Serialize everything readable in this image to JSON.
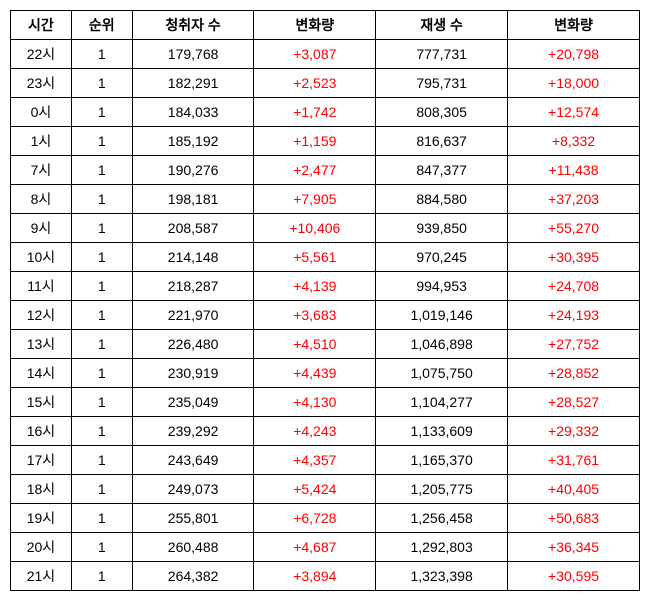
{
  "headers": {
    "time": "시간",
    "rank": "순위",
    "listeners": "청취자 수",
    "change1": "변화량",
    "plays": "재생 수",
    "change2": "변화량"
  },
  "rows": [
    {
      "time": "22시",
      "rank": "1",
      "listeners": "179,768",
      "change1": "+3,087",
      "plays": "777,731",
      "change2": "+20,798"
    },
    {
      "time": "23시",
      "rank": "1",
      "listeners": "182,291",
      "change1": "+2,523",
      "plays": "795,731",
      "change2": "+18,000"
    },
    {
      "time": "0시",
      "rank": "1",
      "listeners": "184,033",
      "change1": "+1,742",
      "plays": "808,305",
      "change2": "+12,574"
    },
    {
      "time": "1시",
      "rank": "1",
      "listeners": "185,192",
      "change1": "+1,159",
      "plays": "816,637",
      "change2": "+8,332"
    },
    {
      "time": "7시",
      "rank": "1",
      "listeners": "190,276",
      "change1": "+2,477",
      "plays": "847,377",
      "change2": "+11,438"
    },
    {
      "time": "8시",
      "rank": "1",
      "listeners": "198,181",
      "change1": "+7,905",
      "plays": "884,580",
      "change2": "+37,203"
    },
    {
      "time": "9시",
      "rank": "1",
      "listeners": "208,587",
      "change1": "+10,406",
      "plays": "939,850",
      "change2": "+55,270"
    },
    {
      "time": "10시",
      "rank": "1",
      "listeners": "214,148",
      "change1": "+5,561",
      "plays": "970,245",
      "change2": "+30,395"
    },
    {
      "time": "11시",
      "rank": "1",
      "listeners": "218,287",
      "change1": "+4,139",
      "plays": "994,953",
      "change2": "+24,708"
    },
    {
      "time": "12시",
      "rank": "1",
      "listeners": "221,970",
      "change1": "+3,683",
      "plays": "1,019,146",
      "change2": "+24,193"
    },
    {
      "time": "13시",
      "rank": "1",
      "listeners": "226,480",
      "change1": "+4,510",
      "plays": "1,046,898",
      "change2": "+27,752"
    },
    {
      "time": "14시",
      "rank": "1",
      "listeners": "230,919",
      "change1": "+4,439",
      "plays": "1,075,750",
      "change2": "+28,852"
    },
    {
      "time": "15시",
      "rank": "1",
      "listeners": "235,049",
      "change1": "+4,130",
      "plays": "1,104,277",
      "change2": "+28,527"
    },
    {
      "time": "16시",
      "rank": "1",
      "listeners": "239,292",
      "change1": "+4,243",
      "plays": "1,133,609",
      "change2": "+29,332"
    },
    {
      "time": "17시",
      "rank": "1",
      "listeners": "243,649",
      "change1": "+4,357",
      "plays": "1,165,370",
      "change2": "+31,761"
    },
    {
      "time": "18시",
      "rank": "1",
      "listeners": "249,073",
      "change1": "+5,424",
      "plays": "1,205,775",
      "change2": "+40,405"
    },
    {
      "time": "19시",
      "rank": "1",
      "listeners": "255,801",
      "change1": "+6,728",
      "plays": "1,256,458",
      "change2": "+50,683"
    },
    {
      "time": "20시",
      "rank": "1",
      "listeners": "260,488",
      "change1": "+4,687",
      "plays": "1,292,803",
      "change2": "+36,345"
    },
    {
      "time": "21시",
      "rank": "1",
      "listeners": "264,382",
      "change1": "+3,894",
      "plays": "1,323,398",
      "change2": "+30,595"
    }
  ]
}
